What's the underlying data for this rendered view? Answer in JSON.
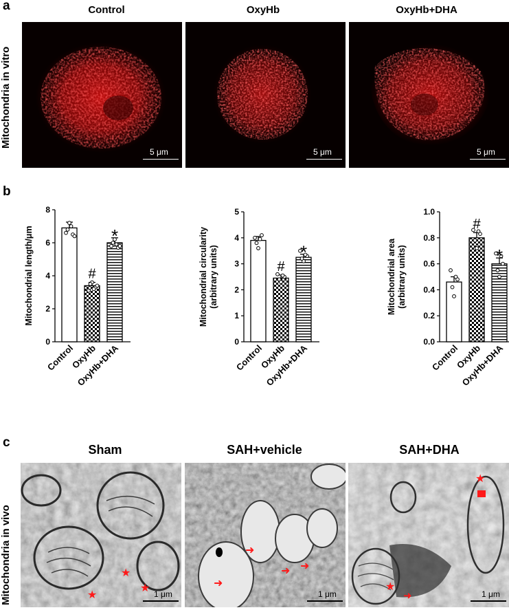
{
  "panel_a": {
    "letter": "a",
    "row_label": "Mitochondria in vitro",
    "columns": [
      "Control",
      "OxyHb",
      "OxyHb+DHA"
    ],
    "scale_label": "5 μm"
  },
  "panel_b": {
    "letter": "b",
    "categories": [
      "Control",
      "OxyHb",
      "OxyHb+DHA"
    ]
  },
  "panel_c": {
    "letter": "c",
    "row_label": "Mitochondria in vivo",
    "columns": [
      "Sham",
      "SAH+vehicle",
      "SAH+DHA"
    ],
    "scale_label": "1 μm"
  },
  "colors": {
    "fluorescence": "#e01010",
    "marker": "#ff1a1a"
  },
  "chart_data": [
    {
      "type": "bar",
      "ylabel": "Mitochondrial length/μm",
      "ylim": [
        0,
        8
      ],
      "yticks": [
        0,
        2,
        4,
        6,
        8
      ],
      "categories": [
        "Control",
        "OxyHb",
        "OxyHb+DHA"
      ],
      "values": [
        6.9,
        3.4,
        6.0
      ],
      "errors": [
        0.35,
        0.2,
        0.3
      ],
      "significance": [
        "",
        "#",
        "*"
      ],
      "points": [
        [
          6.6,
          7.2,
          6.5,
          6.8,
          7.0,
          6.4
        ],
        [
          3.1,
          3.6,
          3.3,
          3.5,
          3.2,
          3.4
        ],
        [
          5.8,
          6.2,
          5.7,
          6.0,
          5.9,
          5.8
        ]
      ]
    },
    {
      "type": "bar",
      "ylabel": "Mitochondrial circularity (arbitrary units)",
      "ylim": [
        0,
        5
      ],
      "yticks": [
        0,
        1,
        2,
        3,
        4,
        5
      ],
      "categories": [
        "Control",
        "OxyHb",
        "OxyHb+DHA"
      ],
      "values": [
        3.9,
        2.45,
        3.25
      ],
      "errors": [
        0.15,
        0.12,
        0.12
      ],
      "significance": [
        "",
        "#",
        "*"
      ],
      "points": [
        [
          4.0,
          3.6,
          4.1,
          3.8,
          3.95
        ],
        [
          2.6,
          2.3,
          2.5,
          2.4,
          2.55
        ],
        [
          3.5,
          3.1,
          3.3,
          3.2,
          3.35
        ]
      ]
    },
    {
      "type": "bar",
      "ylabel": "Mitochondrial area (arbitrary units)",
      "ylim": [
        0,
        1.0
      ],
      "yticks": [
        0,
        0.2,
        0.4,
        0.6,
        0.8,
        1.0
      ],
      "ytick_labels": [
        "0.0",
        "0.2",
        "0.4",
        "0.6",
        "0.8",
        "1.0"
      ],
      "categories": [
        "Control",
        "OxyHb",
        "OxyHb+DHA"
      ],
      "values": [
        0.46,
        0.8,
        0.6
      ],
      "errors": [
        0.04,
        0.04,
        0.045
      ],
      "significance": [
        "",
        "#",
        "*"
      ],
      "points": [
        [
          0.55,
          0.35,
          0.48,
          0.42,
          0.5
        ],
        [
          0.86,
          0.72,
          0.83,
          0.78,
          0.85
        ],
        [
          0.68,
          0.5,
          0.6,
          0.55,
          0.66
        ]
      ]
    }
  ]
}
